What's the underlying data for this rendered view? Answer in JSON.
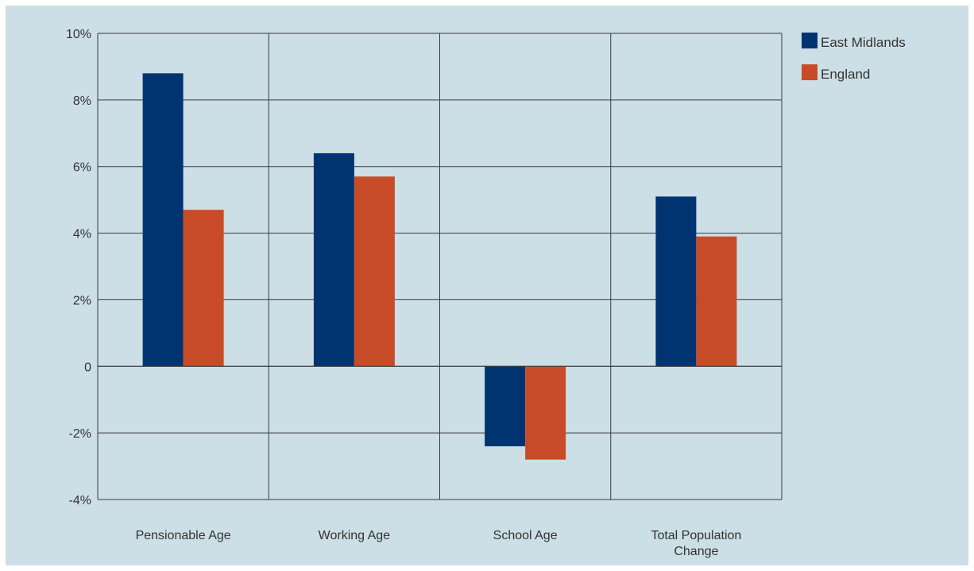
{
  "chart_data": {
    "type": "bar",
    "categories": [
      [
        "Pensionable Age"
      ],
      [
        "Working Age"
      ],
      [
        "School Age"
      ],
      [
        "Total Population",
        "Change"
      ]
    ],
    "series": [
      {
        "name": "East Midlands",
        "color": "#003471",
        "values": [
          8.8,
          6.4,
          -2.4,
          5.1
        ]
      },
      {
        "name": "England",
        "color": "#c84b27",
        "values": [
          4.7,
          5.7,
          -2.8,
          3.9
        ]
      }
    ],
    "y_ticks": [
      10,
      8,
      6,
      4,
      2,
      0,
      -2,
      -4
    ],
    "y_tick_labels": [
      "10%",
      "8%",
      "6%",
      "4%",
      "2%",
      "0",
      "-2%",
      "-4%"
    ],
    "ylim": [
      -4,
      10
    ],
    "grid": true,
    "legend_position": "top-right",
    "colors": {
      "background": "#ccdee6",
      "gridline": "#3a3a3a"
    }
  }
}
